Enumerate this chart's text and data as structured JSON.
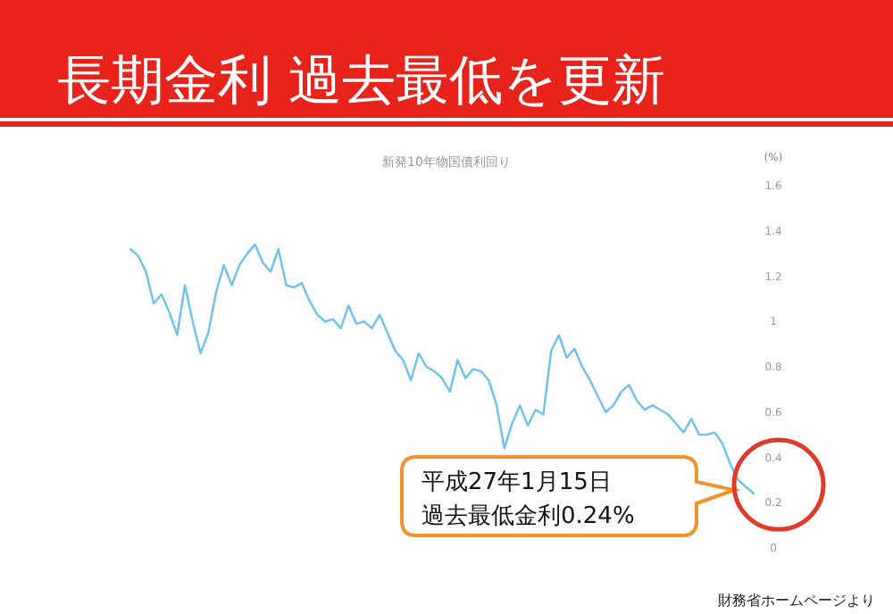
{
  "chart_data": {
    "type": "line",
    "title": "長期金利  過去最低を更新",
    "subtitle": "新発10年物国債利回り",
    "ylabel": "(%)",
    "categories": [
      null,
      null,
      null,
      null,
      null,
      null,
      null,
      null,
      null,
      null,
      null,
      null,
      null,
      null,
      null,
      null,
      null,
      null,
      null,
      null,
      null,
      null,
      null,
      null,
      null,
      null,
      null,
      null,
      null,
      null,
      null,
      null,
      null,
      null,
      null,
      null,
      null,
      null,
      null,
      null,
      null,
      null,
      null,
      null,
      null,
      null,
      null,
      null,
      null,
      null,
      null,
      null,
      null,
      null,
      null,
      null,
      null,
      null,
      null,
      null,
      null,
      null,
      null,
      null,
      null,
      null,
      null,
      null,
      null,
      null,
      null,
      null,
      null,
      null,
      null,
      null,
      null,
      null,
      null,
      null,
      null
    ],
    "series": [
      {
        "color": "#6ec1ea",
        "values": [
          1.32,
          1.29,
          1.22,
          1.08,
          1.12,
          1.04,
          0.94,
          1.16,
          1.0,
          0.86,
          0.95,
          1.13,
          1.25,
          1.16,
          1.25,
          1.3,
          1.34,
          1.26,
          1.22,
          1.32,
          1.16,
          1.15,
          1.17,
          1.09,
          1.03,
          1.0,
          1.01,
          0.97,
          1.07,
          0.99,
          1.0,
          0.97,
          1.03,
          0.95,
          0.87,
          0.83,
          0.74,
          0.86,
          0.8,
          0.78,
          0.75,
          0.69,
          0.83,
          0.75,
          0.79,
          0.78,
          0.74,
          0.63,
          0.44,
          0.55,
          0.63,
          0.54,
          0.61,
          0.59,
          0.87,
          0.94,
          0.84,
          0.88,
          0.8,
          0.74,
          0.67,
          0.6,
          0.63,
          0.69,
          0.72,
          0.65,
          0.61,
          0.63,
          0.61,
          0.59,
          0.55,
          0.51,
          0.57,
          0.5,
          0.5,
          0.51,
          0.46,
          0.37,
          0.3,
          0.27,
          0.24
        ]
      }
    ],
    "ylim": [
      0,
      1.6
    ],
    "yticks": [
      0,
      0.2,
      0.4,
      0.6,
      0.8,
      1,
      1.2,
      1.4,
      1.6
    ],
    "annotations": [
      "平成27年1月15日",
      "過去最低金利0.24%",
      "財務省ホームページより"
    ]
  }
}
